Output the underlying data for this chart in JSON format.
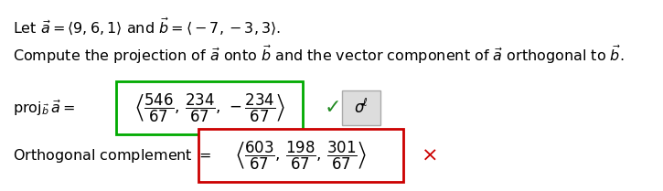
{
  "background_color": "#ffffff",
  "text_color": "#000000",
  "proj_box_color": "#00aa00",
  "orth_box_color": "#cc0000",
  "check_color": "#228B22",
  "cross_color": "#cc0000",
  "edit_box_color": "#cccccc",
  "font_size_main": 11.5,
  "font_size_math": 12,
  "font_size_check": 14,
  "font_size_cross": 14,
  "font_size_edit": 11
}
